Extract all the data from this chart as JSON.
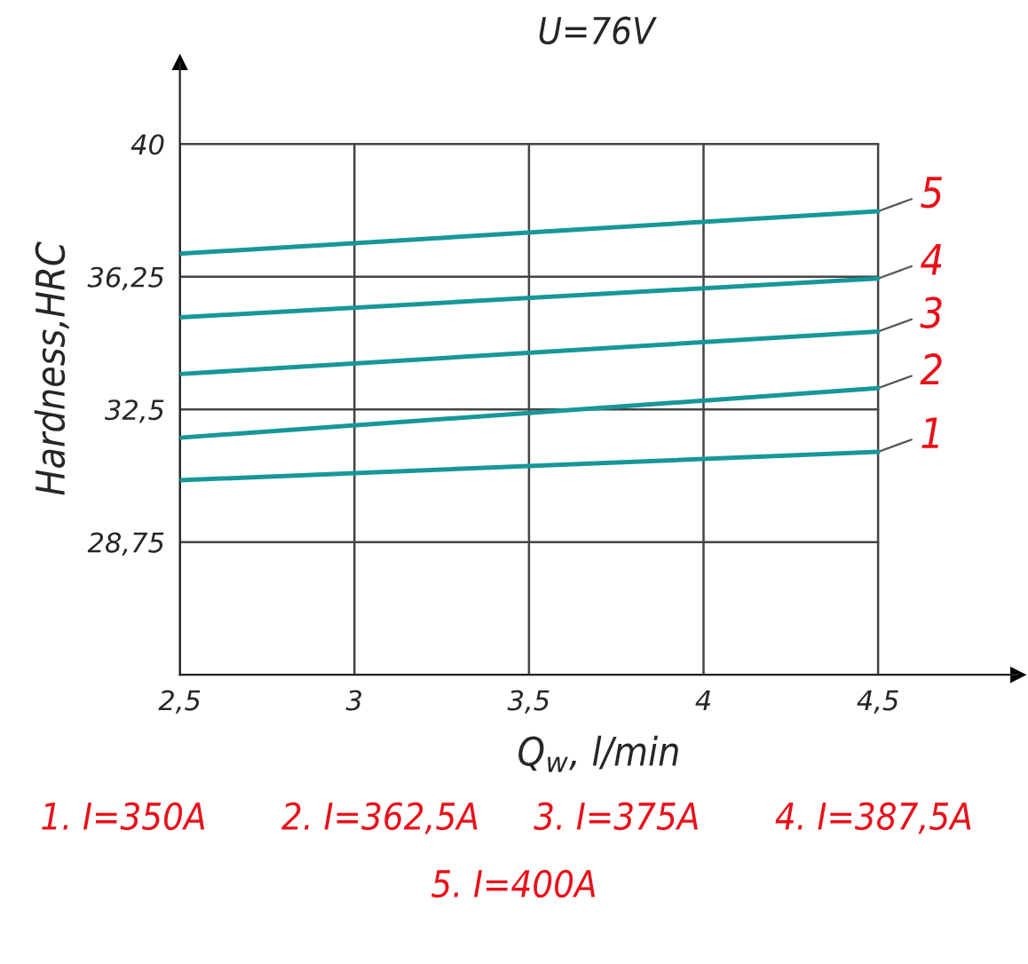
{
  "chart_data": {
    "type": "line",
    "title": "U=76V",
    "xlabel": "Q$_{w}$, l/min",
    "ylabel": "Hardness,HRC",
    "x": [
      2.5,
      4.5
    ],
    "series": [
      {
        "name": "1",
        "color": "#17979a",
        "values": [
          30.5,
          31.3
        ]
      },
      {
        "name": "2",
        "color": "#17979a",
        "values": [
          31.7,
          33.1
        ]
      },
      {
        "name": "3",
        "color": "#17979a",
        "values": [
          33.5,
          34.7
        ]
      },
      {
        "name": "4",
        "color": "#17979a",
        "values": [
          35.1,
          36.2
        ]
      },
      {
        "name": "5",
        "color": "#17979a",
        "values": [
          36.9,
          38.1
        ]
      }
    ],
    "xlim": [
      2.5,
      4.9
    ],
    "ylim": [
      25,
      42.3
    ],
    "xticks": [
      {
        "value": 2.5,
        "label": "2,5"
      },
      3,
      {
        "value": 3.5,
        "label": "3,5"
      },
      4,
      {
        "value": 4.5,
        "label": "4,5"
      }
    ],
    "yticks": [
      {
        "value": 28.75,
        "label": "28,75"
      },
      {
        "value": 32.5,
        "label": "32,5"
      },
      {
        "value": 36.25,
        "label": "36,25"
      },
      40
    ],
    "grid": true,
    "legend": false,
    "marker": "none",
    "line_style": "solid",
    "annotations": [
      "1. I=350A",
      "2. I=362,5A",
      "3. I=375A",
      "4. I=387,5A",
      "5. I=400A"
    ]
  }
}
